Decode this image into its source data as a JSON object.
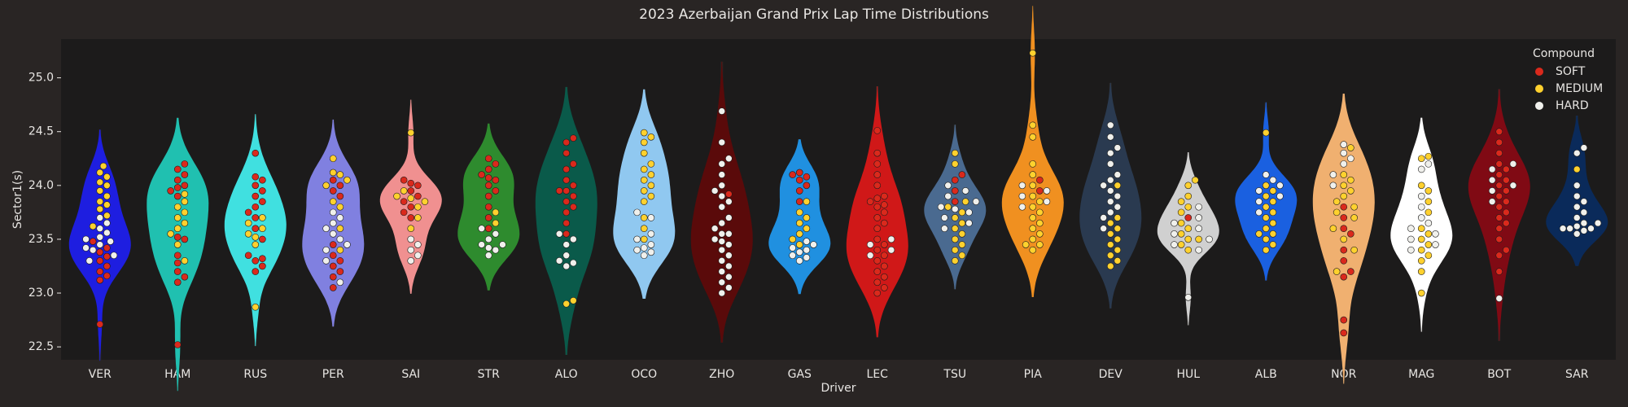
{
  "chart_data": {
    "type": "violin",
    "title": "2023 Azerbaijan Grand Prix Lap Time Distributions",
    "x_label": "Driver",
    "y_label": "Sector1(s)",
    "legend_title": "Compound",
    "legend_position": "upper right",
    "ylim": [
      22.38,
      25.36
    ],
    "yticks": [
      22.5,
      {
        "value": 23,
        "label": "23.0"
      },
      23.5,
      {
        "value": 24,
        "label": "24.0"
      },
      24.5,
      {
        "value": 25,
        "label": "25.0"
      }
    ],
    "series": [
      {
        "name": "SOFT",
        "color": "#da291c"
      },
      {
        "name": "MEDIUM",
        "color": "#ffd12e"
      },
      {
        "name": "HARD",
        "color": "#f0f0ec"
      }
    ],
    "drivers": [
      {
        "name": "VER",
        "color": "#1e1ee0",
        "values": [
          [
            22.71,
            23.12,
            23.16,
            23.2,
            23.25,
            23.3,
            23.34,
            23.38,
            23.42,
            23.48
          ],
          [
            23.62,
            23.72,
            23.78,
            23.82,
            23.85,
            23.9,
            23.95,
            24.0,
            24.03,
            24.08,
            24.12,
            24.18
          ],
          [
            23.3,
            23.35,
            23.4,
            23.42,
            23.45,
            23.48,
            23.5,
            23.52,
            23.56,
            23.6,
            23.65,
            23.7
          ]
        ]
      },
      {
        "name": "HAM",
        "color": "#20c0b0",
        "values": [
          [
            22.52,
            23.1,
            23.15,
            23.2,
            23.28,
            23.35,
            23.5,
            23.52,
            23.9,
            23.95,
            23.98,
            24.0,
            24.05,
            24.1,
            24.15,
            24.2
          ],
          [
            23.3,
            23.45,
            23.55,
            23.6,
            23.65,
            23.7,
            23.75,
            23.8,
            23.85,
            23.92
          ],
          []
        ]
      },
      {
        "name": "RUS",
        "color": "#40e0e0",
        "values": [
          [
            23.2,
            23.25,
            23.3,
            23.32,
            23.35,
            23.5,
            23.6,
            23.7,
            23.75,
            23.8,
            23.85,
            23.9,
            23.95,
            24.0,
            24.05,
            24.08,
            24.3
          ],
          [
            22.87,
            23.45,
            23.52,
            23.55,
            23.6,
            23.65,
            23.7
          ],
          []
        ]
      },
      {
        "name": "PER",
        "color": "#8080e0",
        "values": [
          [
            23.05,
            23.15,
            23.2,
            23.25,
            23.3,
            23.35,
            23.45,
            23.9,
            23.95,
            24.0,
            24.05
          ],
          [
            23.4,
            23.6,
            23.8,
            23.85,
            24.0,
            24.05,
            24.1,
            24.12,
            24.25
          ],
          [
            23.1,
            23.3,
            23.4,
            23.45,
            23.5,
            23.55,
            23.6,
            23.65,
            23.7,
            23.75
          ]
        ]
      },
      {
        "name": "SAI",
        "color": "#f09090",
        "values": [
          [
            23.7,
            23.75,
            23.8,
            23.85,
            23.9,
            23.95,
            24.0,
            24.02,
            24.05
          ],
          [
            23.6,
            23.7,
            23.8,
            23.85,
            23.88,
            23.9,
            23.95,
            24.49
          ],
          [
            23.3,
            23.35,
            23.4,
            23.45,
            23.5
          ]
        ]
      },
      {
        "name": "STR",
        "color": "#2e8b2e",
        "values": [
          [
            23.6,
            23.7,
            23.8,
            23.9,
            23.95,
            24.0,
            24.05,
            24.07,
            24.1,
            24.15,
            24.2,
            24.25
          ],
          [
            23.65,
            23.75
          ],
          [
            23.35,
            23.4,
            23.42,
            23.45,
            23.45,
            23.5,
            23.55,
            23.6
          ]
        ]
      },
      {
        "name": "ALO",
        "color": "#0a5a4a",
        "values": [
          [
            23.55,
            23.65,
            23.75,
            23.8,
            23.85,
            23.9,
            23.95,
            23.95,
            24.0,
            24.05,
            24.15,
            24.2,
            24.3,
            24.4,
            24.44
          ],
          [
            22.9,
            22.93
          ],
          [
            23.25,
            23.28,
            23.3,
            23.35,
            23.45,
            23.5,
            23.55
          ]
        ]
      },
      {
        "name": "OCO",
        "color": "#90c8f0",
        "values": [
          [],
          [
            23.5,
            23.6,
            23.7,
            23.85,
            23.9,
            23.95,
            24.0,
            24.05,
            24.1,
            24.15,
            24.2,
            24.3,
            24.4,
            24.45,
            24.49
          ],
          [
            23.35,
            23.38,
            23.4,
            23.42,
            23.45,
            23.5,
            23.55,
            23.7,
            23.75
          ]
        ]
      },
      {
        "name": "ZHO",
        "color": "#5a0a0a",
        "values": [
          [
            23.92
          ],
          [],
          [
            23.0,
            23.05,
            23.1,
            23.15,
            23.2,
            23.25,
            23.3,
            23.35,
            23.4,
            23.45,
            23.48,
            23.5,
            23.55,
            23.55,
            23.6,
            23.65,
            23.7,
            23.8,
            23.85,
            23.9,
            23.95,
            24.0,
            24.1,
            24.2,
            24.25,
            24.4,
            24.69
          ]
        ]
      },
      {
        "name": "GAS",
        "color": "#2090e0",
        "values": [
          [
            23.85,
            23.95,
            24.0,
            24.05,
            24.08,
            24.1,
            24.12
          ],
          [
            23.45,
            23.5,
            23.55,
            23.6,
            23.65,
            23.7,
            23.75,
            23.85
          ],
          [
            23.3,
            23.33,
            23.35,
            23.38,
            23.4,
            23.42,
            23.45,
            23.48
          ]
        ]
      },
      {
        "name": "LEC",
        "color": "#d01818",
        "values": [
          [
            23.0,
            23.05,
            23.1,
            23.15,
            23.2,
            23.25,
            23.3,
            23.35,
            23.4,
            23.45,
            23.5,
            23.6,
            23.65,
            23.7,
            23.75,
            23.8,
            23.82,
            23.85,
            23.88,
            23.9,
            24.0,
            24.1,
            24.2,
            24.3,
            24.51
          ],
          [],
          [
            23.35,
            23.4,
            23.45,
            23.5
          ]
        ]
      },
      {
        "name": "TSU",
        "color": "#4a6a90",
        "values": [
          [
            23.85,
            23.95,
            24.05,
            24.1
          ],
          [
            23.3,
            23.35,
            23.4,
            23.45,
            23.5,
            23.55,
            23.6,
            23.65,
            23.7,
            23.75,
            23.8,
            23.85,
            24.2,
            24.3
          ],
          [
            23.6,
            23.65,
            23.7,
            23.75,
            23.78,
            23.8,
            23.85,
            23.9,
            23.95,
            24.0
          ]
        ]
      },
      {
        "name": "PIA",
        "color": "#f09020",
        "values": [
          [
            23.95,
            24.05
          ],
          [
            23.4,
            23.45,
            23.45,
            23.5,
            23.55,
            23.6,
            23.65,
            23.7,
            23.75,
            23.8,
            23.85,
            23.9,
            24.0,
            24.1,
            24.2,
            24.45,
            24.56,
            25.23
          ],
          [
            23.8,
            23.85,
            23.9,
            23.95,
            24.0
          ]
        ]
      },
      {
        "name": "DEV",
        "color": "#2a3a50",
        "values": [
          [],
          [
            23.25,
            23.3,
            23.35,
            23.4,
            23.45,
            23.5,
            23.55,
            23.6,
            23.65,
            23.7,
            24.0
          ],
          [
            23.6,
            23.7,
            23.75,
            23.8,
            23.85,
            23.9,
            23.95,
            24.0,
            24.05,
            24.1,
            24.2,
            24.3,
            24.35,
            24.45,
            24.56
          ]
        ]
      },
      {
        "name": "HUL",
        "color": "#d0d0d0",
        "values": [
          [
            23.7
          ],
          [
            23.4,
            23.45,
            23.5,
            23.5,
            23.55,
            23.6,
            23.65,
            23.75,
            23.8,
            23.85,
            23.9,
            24.0,
            24.05
          ],
          [
            22.96,
            23.4,
            23.45,
            23.5,
            23.55,
            23.6,
            23.65,
            23.7,
            23.8
          ]
        ]
      },
      {
        "name": "ALB",
        "color": "#1a60e0",
        "values": [
          [],
          [
            23.4,
            23.45,
            23.5,
            23.55,
            23.55,
            23.6,
            23.65,
            23.7,
            23.75,
            23.8,
            23.85,
            23.9,
            23.95,
            24.0,
            24.49
          ],
          [
            23.75,
            23.85,
            23.9,
            23.95,
            24.0,
            24.05,
            24.1
          ]
        ]
      },
      {
        "name": "NOR",
        "color": "#f0b070",
        "values": [
          [
            22.63,
            22.75,
            23.15,
            23.2,
            23.3,
            23.4,
            23.55,
            23.6,
            23.7,
            23.8
          ],
          [
            23.2,
            23.4,
            23.5,
            23.6,
            23.7,
            23.75,
            23.8,
            23.85,
            23.9,
            23.95,
            24.0,
            24.05,
            24.1,
            24.35
          ],
          [
            24.0,
            24.1,
            24.2,
            24.25,
            24.3,
            24.38
          ]
        ]
      },
      {
        "name": "MAG",
        "color": "#ffffff",
        "values": [
          [],
          [
            23.0,
            23.2,
            23.3,
            23.35,
            23.4,
            23.45,
            23.5,
            23.55,
            23.6,
            23.75,
            23.85,
            23.95,
            24.0,
            24.25,
            24.27
          ],
          [
            23.4,
            23.45,
            23.5,
            23.55,
            23.6,
            23.65,
            23.7,
            23.8,
            23.9,
            24.15,
            24.2
          ]
        ]
      },
      {
        "name": "BOT",
        "color": "#800a14",
        "values": [
          [
            23.2,
            23.35,
            23.4,
            23.5,
            23.6,
            23.65,
            23.7,
            23.75,
            23.8,
            23.85,
            23.9,
            23.95,
            24.0,
            24.05,
            24.1,
            24.15,
            24.2,
            24.3,
            24.4,
            24.5
          ],
          [],
          [
            22.95,
            23.85,
            23.95,
            24.0,
            24.05,
            24.15,
            24.2
          ]
        ]
      },
      {
        "name": "SAR",
        "color": "#0a2a5a",
        "values": [
          [],
          [
            24.15
          ],
          [
            23.55,
            23.58,
            23.6,
            23.6,
            23.6,
            23.62,
            23.65,
            23.65,
            23.7,
            23.75,
            23.8,
            23.85,
            23.9,
            24.0,
            24.3,
            24.35
          ]
        ]
      }
    ]
  }
}
